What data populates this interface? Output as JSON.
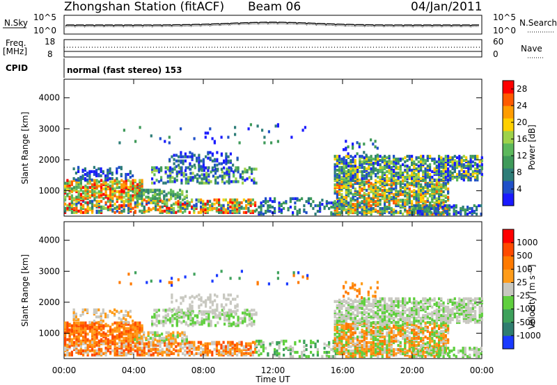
{
  "header": {
    "station": "Zhongshan Station (fitACF)",
    "beam": "Beam 06",
    "date": "04/Jan/2011"
  },
  "strip_labels": {
    "nsky": "N.Sky",
    "nsearch": "N.Search",
    "freq": "Freq.",
    "freq_unit": "[MHz]",
    "nave": "Nave",
    "cpid": "CPID",
    "cpid_text": "normal (fast stereo) 153",
    "noise_ticks": [
      "10^5",
      "10^0"
    ],
    "freq_ticks": [
      "18",
      "8"
    ],
    "nave_ticks": [
      "60",
      "0"
    ]
  },
  "chart_data": [
    {
      "type": "heatmap",
      "title": "",
      "xlabel": "",
      "ylabel": "Slant Range [km]",
      "x_ticks": [
        "00:00",
        "04:00",
        "08:00",
        "12:00",
        "16:00",
        "20:00",
        "00:00"
      ],
      "y_ticks": [
        1000,
        2000,
        3000,
        4000
      ],
      "xlim_hours": [
        0,
        24
      ],
      "ylim_km": [
        180,
        4600
      ],
      "colorbar": {
        "label": "Power [dB]",
        "ticks": [
          4,
          8,
          12,
          16,
          20,
          24,
          28
        ],
        "range": [
          0,
          30
        ],
        "colors": [
          "#1a1aff",
          "#2050c8",
          "#2e7d78",
          "#3f9a5a",
          "#5cb85c",
          "#9ed24a",
          "#ffd000",
          "#ff9c00",
          "#ff5a00",
          "#ff0000"
        ]
      }
    },
    {
      "type": "heatmap",
      "title": "",
      "xlabel": "Time UT",
      "ylabel": "Slant Range [km]",
      "x_ticks": [
        "00:00",
        "04:00",
        "08:00",
        "12:00",
        "16:00",
        "20:00",
        "00:00"
      ],
      "y_ticks": [
        1000,
        2000,
        3000,
        4000
      ],
      "xlim_hours": [
        0,
        24
      ],
      "ylim_km": [
        180,
        4600
      ],
      "colorbar": {
        "label": "Velocity [m s⁻¹]",
        "ticks": [
          "1000",
          "500",
          "100",
          "25",
          "-25",
          "-100",
          "-500",
          "-1000"
        ],
        "colors": [
          "#1a3aff",
          "#2f7d6f",
          "#3ea15b",
          "#5fcf3e",
          "#c8c8c0",
          "#ff9c1a",
          "#ff7a00",
          "#ff4a00",
          "#ff0000"
        ]
      }
    }
  ]
}
